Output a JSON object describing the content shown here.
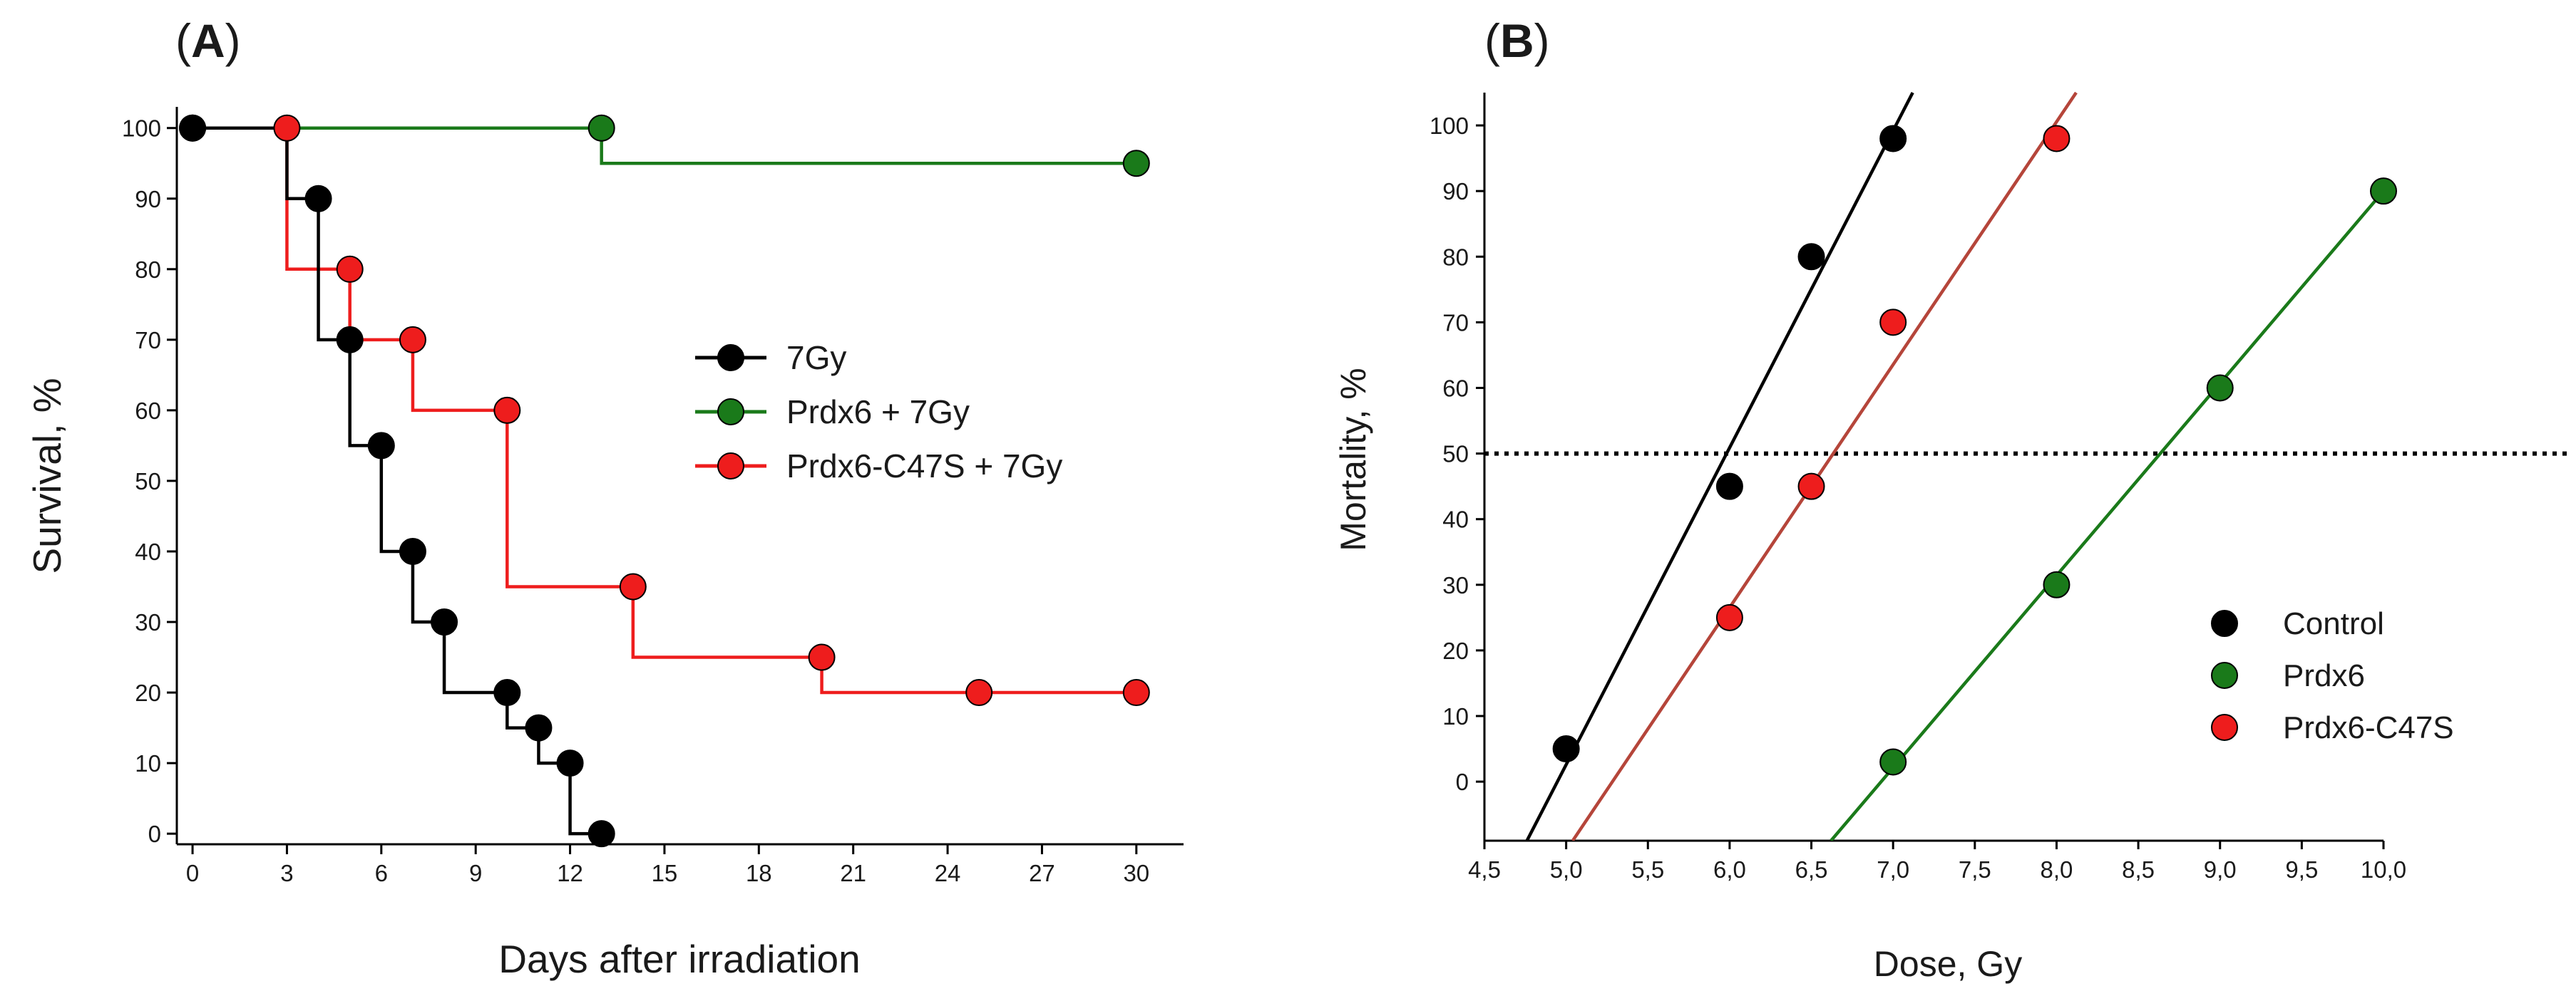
{
  "colors": {
    "black": "#000000",
    "green": "#1a7a1a",
    "red": "#ee1d1d",
    "red_line": "#b5453a"
  },
  "chart_data": [
    {
      "type": "line",
      "panel_label": "(A)",
      "panel_letter": "A",
      "xlabel": "Days after irradiation",
      "ylabel": "Survival, %",
      "xlim": [
        -0.5,
        31.5
      ],
      "ylim": [
        -1.5,
        103
      ],
      "xticks": [
        0,
        3,
        6,
        9,
        12,
        15,
        18,
        21,
        24,
        27,
        30
      ],
      "yticks": [
        0,
        10,
        20,
        30,
        40,
        50,
        60,
        70,
        80,
        90,
        100
      ],
      "grid": false,
      "legend_position": "center-right",
      "series": [
        {
          "name": "7Gy",
          "color": "black",
          "step": [
            [
              0,
              100
            ],
            [
              3,
              100
            ],
            [
              3,
              90
            ],
            [
              4,
              90
            ],
            [
              4,
              70
            ],
            [
              5,
              70
            ],
            [
              5,
              55
            ],
            [
              6,
              55
            ],
            [
              6,
              40
            ],
            [
              7,
              40
            ],
            [
              7,
              30
            ],
            [
              8,
              30
            ],
            [
              8,
              20
            ],
            [
              10,
              20
            ],
            [
              10,
              15
            ],
            [
              11,
              15
            ],
            [
              11,
              10
            ],
            [
              12,
              10
            ],
            [
              12,
              0
            ],
            [
              13,
              0
            ]
          ],
          "points": [
            [
              0,
              100
            ],
            [
              4,
              90
            ],
            [
              5,
              70
            ],
            [
              6,
              55
            ],
            [
              7,
              40
            ],
            [
              8,
              30
            ],
            [
              10,
              20
            ],
            [
              11,
              15
            ],
            [
              12,
              10
            ],
            [
              13,
              0
            ]
          ]
        },
        {
          "name": "Prdx6 + 7Gy",
          "color": "green",
          "step": [
            [
              0,
              100
            ],
            [
              13,
              100
            ],
            [
              13,
              95
            ],
            [
              30,
              95
            ]
          ],
          "points": [
            [
              13,
              100
            ],
            [
              30,
              95
            ]
          ]
        },
        {
          "name": "Prdx6-C47S + 7Gy",
          "color": "red",
          "step": [
            [
              0,
              100
            ],
            [
              3,
              100
            ],
            [
              3,
              80
            ],
            [
              5,
              80
            ],
            [
              5,
              70
            ],
            [
              7,
              70
            ],
            [
              7,
              60
            ],
            [
              10,
              60
            ],
            [
              10,
              35
            ],
            [
              14,
              35
            ],
            [
              14,
              25
            ],
            [
              20,
              25
            ],
            [
              20,
              20
            ],
            [
              30,
              20
            ]
          ],
          "points": [
            [
              0,
              100
            ],
            [
              3,
              100
            ],
            [
              5,
              80
            ],
            [
              7,
              70
            ],
            [
              10,
              60
            ],
            [
              14,
              35
            ],
            [
              20,
              25
            ],
            [
              25,
              20
            ],
            [
              30,
              20
            ]
          ]
        }
      ]
    },
    {
      "type": "scatter",
      "panel_label": "(B)",
      "panel_letter": "B",
      "xlabel": "Dose, Gy",
      "ylabel": "Mortality, %",
      "xlim": [
        4.5,
        10.0
      ],
      "ylim": [
        -9,
        105
      ],
      "xticks": [
        "4,5",
        "5,0",
        "5,5",
        "6,0",
        "6,5",
        "7,0",
        "7,5",
        "8,0",
        "8,5",
        "9,0",
        "9,5",
        "10,0"
      ],
      "xtick_values": [
        4.5,
        5.0,
        5.5,
        6.0,
        6.5,
        7.0,
        7.5,
        8.0,
        8.5,
        9.0,
        9.5,
        10.0
      ],
      "yticks": [
        0,
        10,
        20,
        30,
        40,
        50,
        60,
        70,
        80,
        90,
        100
      ],
      "grid": false,
      "reference_line_y": 50,
      "legend_position": "bottom-right",
      "series": [
        {
          "name": "Control",
          "color": "black",
          "line_color": "black",
          "points": [
            [
              5.0,
              5
            ],
            [
              6.0,
              45
            ],
            [
              6.5,
              80
            ],
            [
              7.0,
              98
            ]
          ],
          "fit": [
            [
              4.76,
              -9
            ],
            [
              7.12,
              105
            ]
          ]
        },
        {
          "name": "Prdx6",
          "color": "green",
          "line_color": "green",
          "points": [
            [
              7.0,
              3
            ],
            [
              8.0,
              30
            ],
            [
              9.0,
              60
            ],
            [
              10.0,
              90
            ]
          ],
          "fit": [
            [
              6.62,
              -9
            ],
            [
              10.0,
              90
            ]
          ]
        },
        {
          "name": "Prdx6-C47S",
          "color": "red",
          "line_color": "red_line",
          "points": [
            [
              6.0,
              25
            ],
            [
              6.5,
              45
            ],
            [
              7.0,
              70
            ],
            [
              8.0,
              98
            ]
          ],
          "fit": [
            [
              5.04,
              -9
            ],
            [
              8.12,
              105
            ]
          ]
        }
      ]
    }
  ]
}
